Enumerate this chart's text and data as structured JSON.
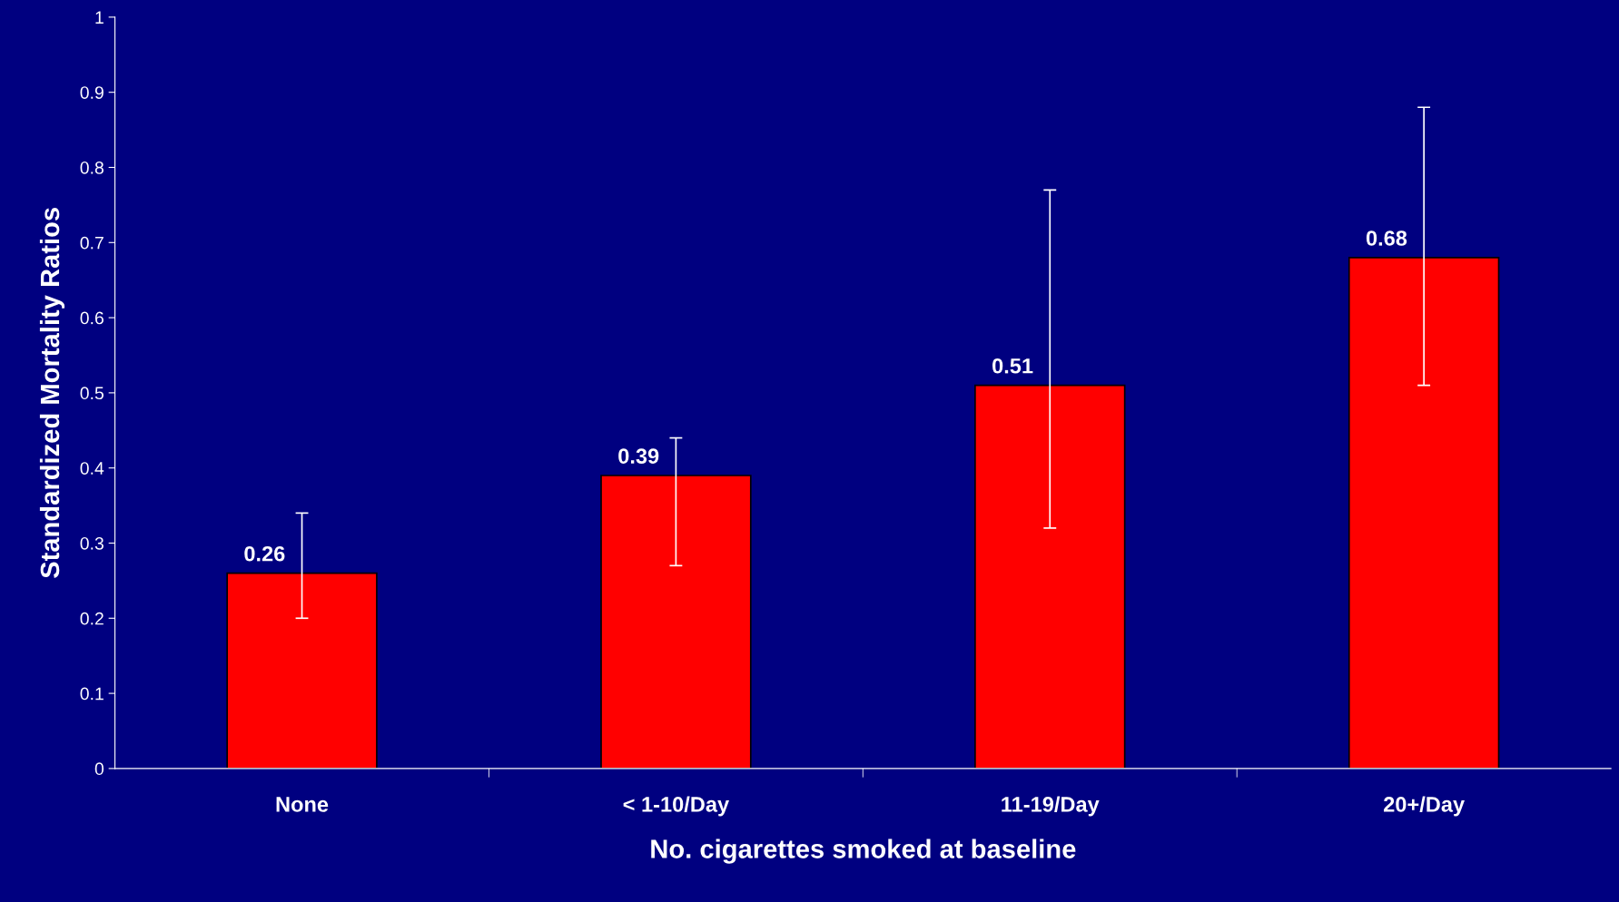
{
  "chart_data": {
    "type": "bar",
    "xlabel": "No. cigarettes smoked at baseline",
    "ylabel": "Standardized Mortality Ratios",
    "categories": [
      "None",
      "< 1-10/Day",
      "11-19/Day",
      "20+/Day"
    ],
    "values": [
      0.26,
      0.39,
      0.51,
      0.68
    ],
    "errors": [
      [
        0.2,
        0.34
      ],
      [
        0.27,
        0.44
      ],
      [
        0.32,
        0.77
      ],
      [
        0.51,
        0.88
      ]
    ],
    "color": "#ff0000",
    "ylim": [
      0,
      1
    ],
    "yticks": [
      0,
      0.1,
      0.2,
      0.3,
      0.4,
      0.5,
      0.6,
      0.7,
      0.8,
      0.9,
      1
    ],
    "data_labels": true,
    "grid": false
  }
}
